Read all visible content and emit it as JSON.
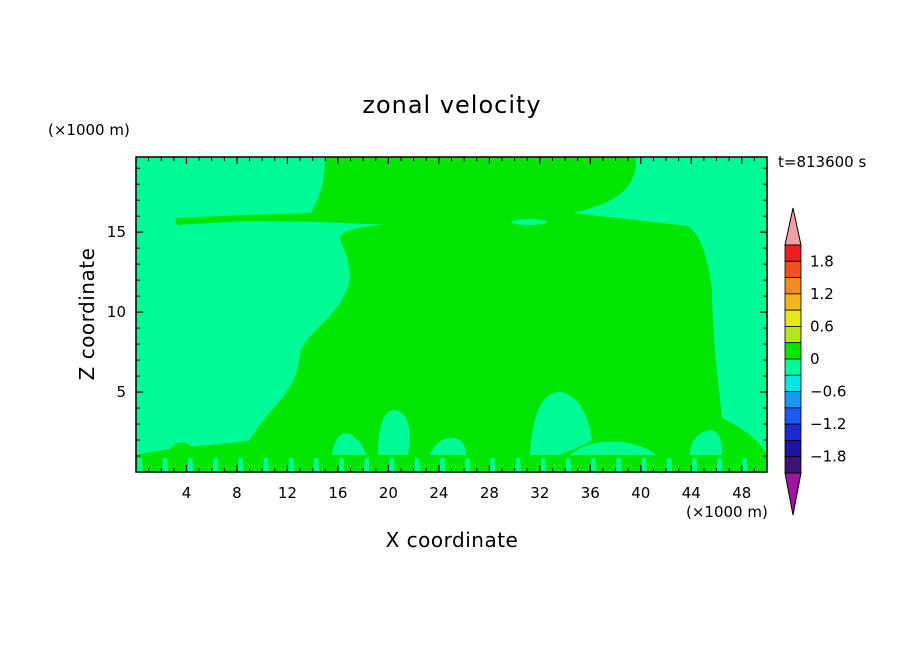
{
  "chart_data": {
    "type": "heatmap",
    "title": "zonal velocity",
    "xlabel": "X coordinate",
    "ylabel": "Z coordinate",
    "x_unit": "(×1000 m)",
    "y_unit": "(×1000 m)",
    "time_label": "t=813600 s",
    "xlim": [
      0,
      50
    ],
    "ylim": [
      0,
      19.7
    ],
    "x_ticks": [
      4,
      8,
      12,
      16,
      20,
      24,
      28,
      32,
      36,
      40,
      44,
      48
    ],
    "y_ticks": [
      5,
      10,
      15
    ],
    "colorbar": {
      "labels": [
        "1.8",
        "1.2",
        "0.6",
        "0",
        "−0.6",
        "−1.2",
        "−1.8"
      ],
      "label_values": [
        1.8,
        1.2,
        0.6,
        0,
        -0.6,
        -1.2,
        -1.8
      ],
      "levels": [
        1.8,
        1.5,
        1.2,
        0.9,
        0.6,
        0.3,
        0,
        -0.3,
        -0.6,
        -0.9,
        -1.2,
        -1.5,
        -1.8
      ],
      "colors_top_to_bottom": [
        "#f01e1e",
        "#f0501e",
        "#f08c1e",
        "#f0b41e",
        "#e6e61e",
        "#b4e61e",
        "#00e600",
        "#00fa96",
        "#00e6e6",
        "#1e96f0",
        "#1e5af0",
        "#1e28d2",
        "#1e14a0",
        "#3c1478"
      ],
      "over_color": "#f0a0a0",
      "under_color": "#a014a0"
    },
    "regions": [
      {
        "range": "0 to 0.3",
        "color": "#00e600",
        "where": "central column x≈12–46, z≈0–19.7, plus shallow band z≈15.5–16.3 across x≈4–40"
      },
      {
        "range": "-0.3 to 0",
        "color": "#00fa96",
        "where": "left x<12 and right x>46 columns, near-surface bumps below z≈5"
      }
    ]
  }
}
